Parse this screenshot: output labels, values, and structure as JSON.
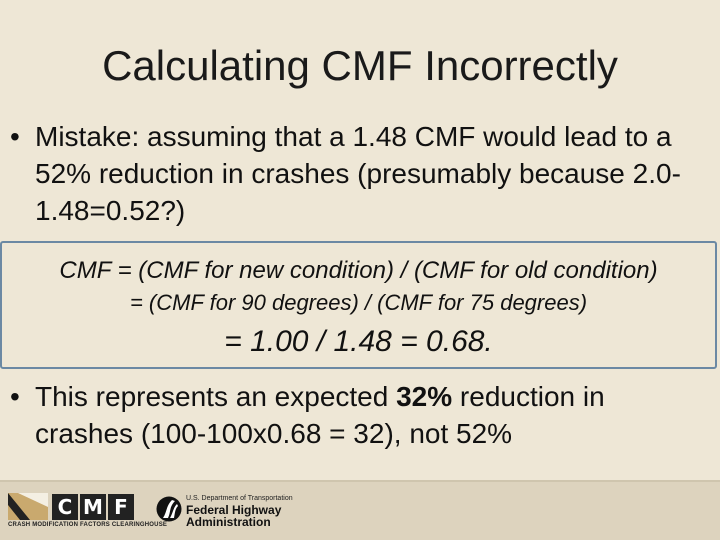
{
  "slide": {
    "title": "Calculating CMF Incorrectly",
    "bullet_symbol": "•",
    "bullet1": "Mistake: assuming that a 1.48 CMF would lead to a 52% reduction in crashes (presumably because 2.0-1.48=0.52?)",
    "formula": {
      "line1": "CMF = (CMF for new condition) / (CMF for old condition)",
      "line2": "= (CMF for 90 degrees) / (CMF for 75 degrees)",
      "line3": "= 1.00 / 1.48 = 0.68."
    },
    "bullet2": {
      "before": "This represents an expected ",
      "bold": "32%",
      "after": " reduction in crashes (100-100x0.68 = 32), not 52%"
    }
  },
  "footer": {
    "cmf_logo": {
      "letters": [
        "C",
        "M",
        "F"
      ],
      "caption": "CRASH MODIFICATION FACTORS CLEARINGHOUSE"
    },
    "fhwa_logo": {
      "department": "U.S. Department of Transportation",
      "name_line1": "Federal Highway",
      "name_line2": "Administration"
    }
  },
  "colors": {
    "background": "#eee7d6",
    "footer": "#ddd3be",
    "box_border": "#6b89a4",
    "logo_tan": "#c9a96e"
  }
}
